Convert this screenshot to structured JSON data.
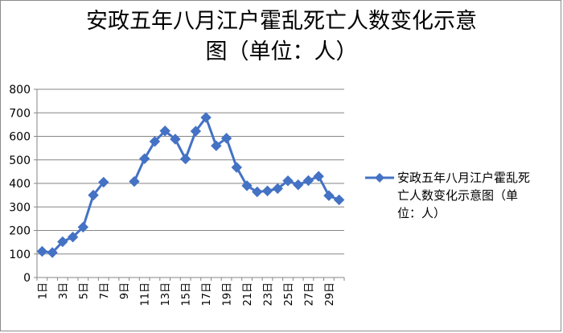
{
  "chart_data": {
    "type": "line",
    "title_line1": "安政五年八月江户霍乱死亡人数变化示意",
    "title_line2": "图（单位：人）",
    "legend_line1": "安政五年八月江户霍乱死",
    "legend_line2": "亡人数变化示意图（单",
    "legend_line3": "位：人）",
    "series": [
      {
        "name": "安政五年八月江户霍乱死亡人数变化示意图（单位：人）",
        "color": "#4472c4",
        "x": [
          1,
          2,
          3,
          4,
          5,
          6,
          7,
          8,
          9,
          10,
          11,
          12,
          13,
          14,
          15,
          16,
          17,
          18,
          19,
          20,
          21,
          22,
          23,
          24,
          25,
          26,
          27,
          28,
          29,
          30
        ],
        "values": [
          111,
          106,
          152,
          172,
          214,
          350,
          405,
          null,
          null,
          408,
          505,
          578,
          623,
          588,
          504,
          622,
          680,
          560,
          592,
          468,
          390,
          364,
          368,
          378,
          411,
          394,
          412,
          430,
          348,
          330
        ]
      }
    ],
    "x_tick_labels": [
      "1日",
      "3日",
      "5日",
      "7日",
      "9日",
      "11日",
      "13日",
      "15日",
      "17日",
      "19日",
      "21日",
      "23日",
      "25日",
      "27日",
      "29日"
    ],
    "x_tick_values": [
      1,
      3,
      5,
      7,
      9,
      11,
      13,
      15,
      17,
      19,
      21,
      23,
      25,
      27,
      29
    ],
    "y_ticks": [
      0,
      100,
      200,
      300,
      400,
      500,
      600,
      700,
      800
    ],
    "ylim": [
      0,
      800
    ],
    "xlim": [
      0.5,
      30.5
    ],
    "grid": true,
    "legend_position": "right"
  }
}
